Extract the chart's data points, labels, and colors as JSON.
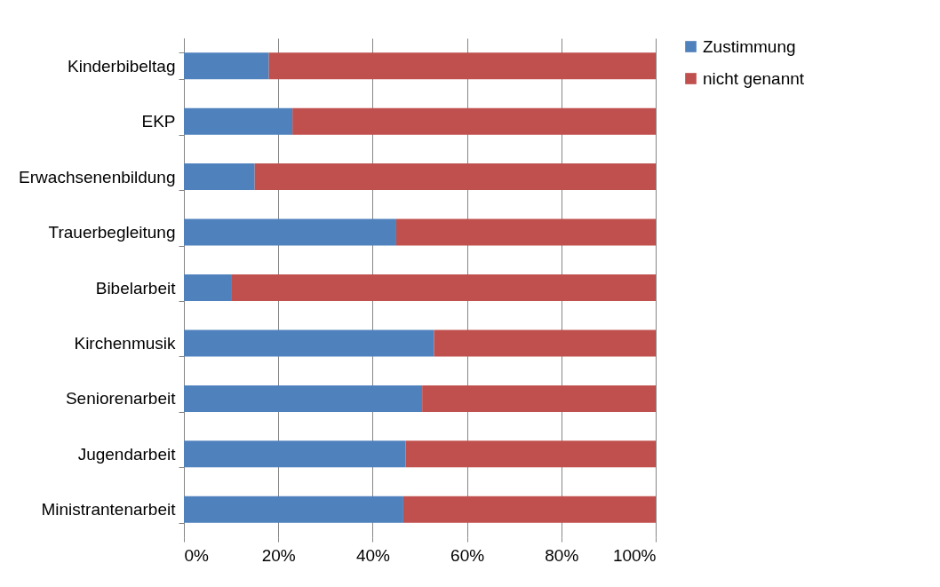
{
  "chart_data": {
    "type": "bar",
    "orientation": "horizontal",
    "stacked": true,
    "categories": [
      "Kinderbibeltag",
      "EKP",
      "Erwachsenenbildung",
      "Trauerbegleitung",
      "Bibelarbeit",
      "Kirchenmusik",
      "Seniorenarbeit",
      "Jugendarbeit",
      "Ministrantenarbeit"
    ],
    "series": [
      {
        "name": "Zustimmung",
        "color": "#4f81bd",
        "values": [
          18,
          23,
          15,
          45,
          10,
          53,
          50.5,
          47,
          46.5
        ]
      },
      {
        "name": "nicht genannt",
        "color": "#c0504d",
        "values": [
          82,
          77,
          85,
          55,
          90,
          47,
          49.5,
          53,
          53.5
        ]
      }
    ],
    "xlim": [
      0,
      100
    ],
    "xticks": [
      {
        "value": 0,
        "label": "0%"
      },
      {
        "value": 20,
        "label": "20%"
      },
      {
        "value": 40,
        "label": "40%"
      },
      {
        "value": 60,
        "label": "60%"
      },
      {
        "value": 80,
        "label": "80%"
      },
      {
        "value": 100,
        "label": "100%"
      }
    ],
    "grid": "x",
    "legend": "right"
  }
}
